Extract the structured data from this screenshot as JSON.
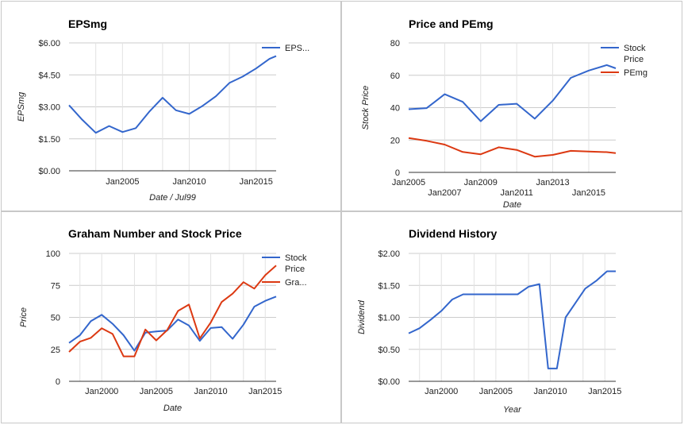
{
  "chart_data": [
    {
      "type": "line",
      "title": "EPSmg",
      "xlabel": "Date / Jul99",
      "ylabel": "EPSmg",
      "ylim": [
        0,
        6
      ],
      "xlim": [
        2001,
        2016.5
      ],
      "grid": true,
      "legend_position": "right",
      "y_ticks": [
        {
          "value": 0,
          "label": "$0.00"
        },
        {
          "value": 1.5,
          "label": "$1.50"
        },
        {
          "value": 3,
          "label": "$3.00"
        },
        {
          "value": 4.5,
          "label": "$4.50"
        },
        {
          "value": 6,
          "label": "$6.00"
        }
      ],
      "x_ticks": [
        {
          "value": 2005,
          "label": "Jan2005",
          "row": 0
        },
        {
          "value": 2010,
          "label": "Jan2010",
          "row": 0
        },
        {
          "value": 2015,
          "label": "Jan2015",
          "row": 0
        }
      ],
      "x_gridlines": [
        2003,
        2005,
        2008,
        2010,
        2013,
        2015
      ],
      "series": [
        {
          "name": "EPS...",
          "color": "#3366cc",
          "x": [
            2001,
            2002,
            2003,
            2004,
            2005,
            2006,
            2007,
            2008,
            2009,
            2010,
            2011,
            2012,
            2013,
            2014,
            2015,
            2016,
            2016.5
          ],
          "y": [
            3.08,
            2.39,
            1.78,
            2.1,
            1.82,
            2.0,
            2.77,
            3.43,
            2.84,
            2.67,
            3.05,
            3.5,
            4.12,
            4.42,
            4.8,
            5.25,
            5.38
          ]
        }
      ]
    },
    {
      "type": "line",
      "title": "Price and PEmg",
      "xlabel": "Date",
      "ylabel": "Stock Price",
      "ylim": [
        0,
        80
      ],
      "xlim": [
        2005,
        2016.5
      ],
      "grid": true,
      "legend_position": "right",
      "y_ticks": [
        {
          "value": 0,
          "label": "0"
        },
        {
          "value": 20,
          "label": "20"
        },
        {
          "value": 40,
          "label": "40"
        },
        {
          "value": 60,
          "label": "60"
        },
        {
          "value": 80,
          "label": "80"
        }
      ],
      "x_ticks": [
        {
          "value": 2005,
          "label": "Jan2005",
          "row": 0
        },
        {
          "value": 2007,
          "label": "Jan2007",
          "row": 1
        },
        {
          "value": 2009,
          "label": "Jan2009",
          "row": 0
        },
        {
          "value": 2011,
          "label": "Jan2011",
          "row": 1
        },
        {
          "value": 2013,
          "label": "Jan2013",
          "row": 0
        },
        {
          "value": 2015,
          "label": "Jan2015",
          "row": 1
        }
      ],
      "x_gridlines": [
        2007,
        2009,
        2011,
        2013,
        2015
      ],
      "series": [
        {
          "name": "Stock Price",
          "color": "#3366cc",
          "x": [
            2005,
            2006,
            2007,
            2008,
            2009,
            2010,
            2011,
            2012,
            2013,
            2014,
            2015,
            2016,
            2016.5
          ],
          "y": [
            39,
            39.7,
            48.3,
            43.6,
            31.6,
            41.7,
            42.4,
            33.2,
            44.3,
            58.4,
            62.9,
            66.3,
            64.3
          ]
        },
        {
          "name": "PEmg",
          "color": "#dc3912",
          "x": [
            2005,
            2006,
            2007,
            2008,
            2009,
            2010,
            2011,
            2012,
            2013,
            2014,
            2015,
            2016,
            2016.5
          ],
          "y": [
            21.2,
            19.5,
            17.2,
            12.6,
            11.2,
            15.5,
            13.9,
            9.7,
            10.8,
            13.3,
            12.9,
            12.5,
            11.9
          ]
        }
      ]
    },
    {
      "type": "line",
      "title": "Graham Number and Stock Price",
      "xlabel": "Date",
      "ylabel": "Price",
      "ylim": [
        0,
        100
      ],
      "xlim": [
        1997,
        2016
      ],
      "grid": true,
      "legend_position": "right",
      "y_ticks": [
        {
          "value": 0,
          "label": "0"
        },
        {
          "value": 25,
          "label": "25"
        },
        {
          "value": 50,
          "label": "50"
        },
        {
          "value": 75,
          "label": "75"
        },
        {
          "value": 100,
          "label": "100"
        }
      ],
      "x_ticks": [
        {
          "value": 2000,
          "label": "Jan2000",
          "row": 0
        },
        {
          "value": 2005,
          "label": "Jan2005",
          "row": 0
        },
        {
          "value": 2010,
          "label": "Jan2010",
          "row": 0
        },
        {
          "value": 2015,
          "label": "Jan2015",
          "row": 0
        }
      ],
      "x_gridlines": [
        1998,
        2000,
        2003,
        2005,
        2008,
        2010,
        2013,
        2015
      ],
      "series": [
        {
          "name": "Stock Price",
          "color": "#3366cc",
          "x": [
            1997,
            1998,
            1999,
            2000,
            2001,
            2002,
            2003,
            2004,
            2005,
            2006,
            2007,
            2008,
            2009,
            2010,
            2011,
            2012,
            2013,
            2014,
            2015,
            2016
          ],
          "y": [
            30,
            36,
            47,
            52,
            45,
            36,
            24,
            38,
            39,
            39.7,
            48.3,
            43.6,
            31.6,
            41.7,
            42.4,
            33.2,
            44.3,
            58.4,
            62.9,
            66.3
          ]
        },
        {
          "name": "Gra...",
          "color": "#dc3912",
          "x": [
            1997,
            1998,
            1999,
            2000,
            2001,
            2002,
            2003,
            2004,
            2005,
            2006,
            2007,
            2008,
            2009,
            2010,
            2011,
            2012,
            2013,
            2014,
            2015,
            2016
          ],
          "y": [
            23,
            31,
            34,
            41.5,
            37,
            19.5,
            19.5,
            40.5,
            32,
            40,
            55,
            60,
            33.5,
            46,
            62,
            68.5,
            77.5,
            72.5,
            83,
            90.5
          ]
        }
      ]
    },
    {
      "type": "line",
      "title": "Dividend History",
      "xlabel": "Year",
      "ylabel": "Dividend",
      "ylim": [
        0,
        2
      ],
      "xlim": [
        1997,
        2016
      ],
      "grid": true,
      "legend_position": "none",
      "y_ticks": [
        {
          "value": 0,
          "label": "$0.00"
        },
        {
          "value": 0.5,
          "label": "$0.50"
        },
        {
          "value": 1,
          "label": "$1.00"
        },
        {
          "value": 1.5,
          "label": "$1.50"
        },
        {
          "value": 2,
          "label": "$2.00"
        }
      ],
      "x_ticks": [
        {
          "value": 2000,
          "label": "Jan2000",
          "row": 0
        },
        {
          "value": 2005,
          "label": "Jan2005",
          "row": 0
        },
        {
          "value": 2010,
          "label": "Jan2010",
          "row": 0
        },
        {
          "value": 2015,
          "label": "Jan2015",
          "row": 0
        }
      ],
      "x_gridlines": [
        1998,
        2000,
        2003,
        2005,
        2008,
        2010,
        2013,
        2015
      ],
      "series": [
        {
          "name": "Dividend",
          "color": "#3366cc",
          "x": [
            1997,
            1998,
            1999,
            2000,
            2001,
            2002,
            2003,
            2004,
            2005,
            2006,
            2007,
            2008,
            2009,
            2009.8,
            2010.6,
            2011.4,
            2012.2,
            2013.2,
            2014.2,
            2015.2,
            2016
          ],
          "y": [
            0.75,
            0.83,
            0.96,
            1.1,
            1.28,
            1.36,
            1.36,
            1.36,
            1.36,
            1.36,
            1.36,
            1.48,
            1.52,
            0.2,
            0.2,
            1.0,
            1.2,
            1.45,
            1.57,
            1.72,
            1.72
          ]
        }
      ]
    }
  ]
}
